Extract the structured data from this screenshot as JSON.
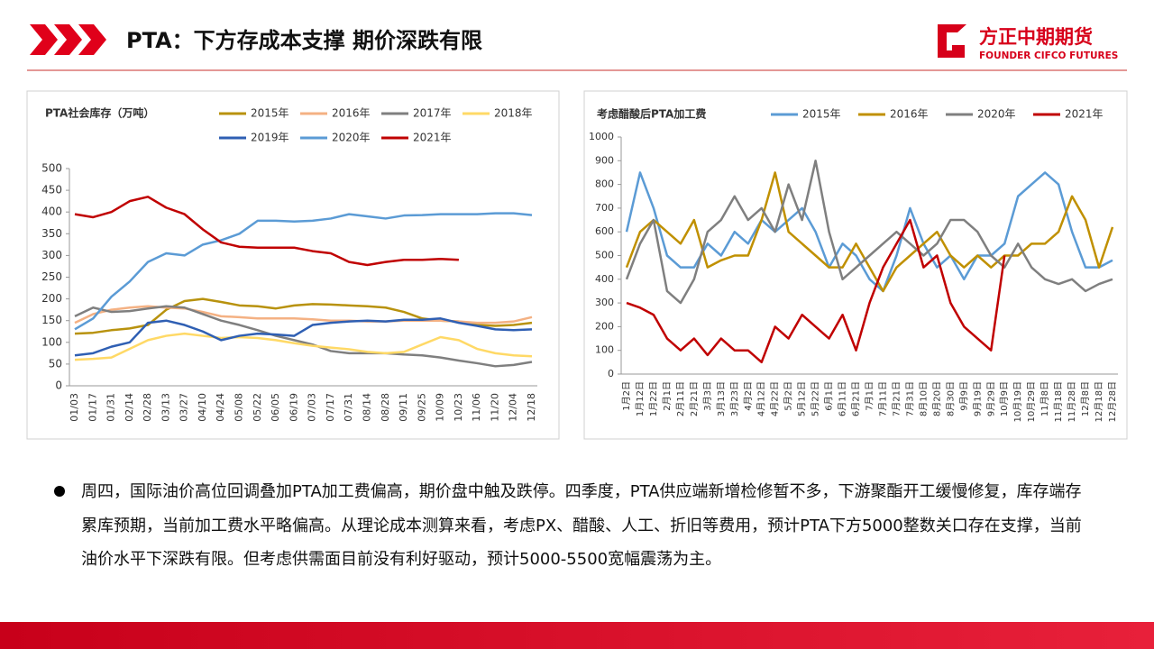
{
  "header": {
    "title": "PTA：下方存成本支撑 期价深跌有限",
    "logo_cn": "方正中期期货",
    "logo_en": "FOUNDER CIFCO FUTURES"
  },
  "chart_data": [
    {
      "type": "line",
      "title": "PTA社会库存（万吨）",
      "categories": [
        "01/03",
        "01/17",
        "01/31",
        "02/14",
        "02/28",
        "03/13",
        "03/27",
        "04/10",
        "04/24",
        "05/08",
        "05/22",
        "06/05",
        "06/19",
        "07/03",
        "07/17",
        "07/31",
        "08/14",
        "08/28",
        "09/11",
        "09/25",
        "10/09",
        "10/23",
        "11/06",
        "11/20",
        "12/04",
        "12/18"
      ],
      "series": [
        {
          "name": "2015年",
          "color": "#b8920e",
          "values": [
            120,
            122,
            128,
            132,
            140,
            175,
            195,
            200,
            193,
            185,
            183,
            178,
            185,
            188,
            187,
            185,
            183,
            180,
            170,
            155,
            150,
            148,
            140,
            138,
            140,
            145
          ]
        },
        {
          "name": "2016年",
          "color": "#f4b183",
          "values": [
            145,
            165,
            175,
            180,
            183,
            180,
            178,
            170,
            160,
            158,
            155,
            155,
            155,
            153,
            150,
            150,
            148,
            148,
            150,
            150,
            150,
            148,
            145,
            145,
            148,
            158
          ]
        },
        {
          "name": "2017年",
          "color": "#7f7f7f",
          "values": [
            160,
            180,
            170,
            172,
            178,
            183,
            180,
            165,
            150,
            140,
            128,
            115,
            105,
            95,
            80,
            75,
            75,
            75,
            72,
            70,
            65,
            58,
            52,
            45,
            48,
            55
          ]
        },
        {
          "name": "2018年",
          "color": "#ffd966",
          "values": [
            60,
            62,
            65,
            85,
            105,
            115,
            120,
            115,
            110,
            112,
            110,
            105,
            98,
            92,
            88,
            84,
            78,
            75,
            78,
            95,
            112,
            105,
            85,
            75,
            70,
            68
          ]
        },
        {
          "name": "2019年",
          "color": "#2f5fb3",
          "values": [
            70,
            75,
            90,
            100,
            145,
            150,
            140,
            125,
            105,
            115,
            120,
            118,
            115,
            140,
            145,
            148,
            150,
            148,
            152,
            152,
            155,
            145,
            138,
            130,
            128,
            130
          ]
        },
        {
          "name": "2020年",
          "color": "#5b9bd5",
          "values": [
            130,
            155,
            205,
            240,
            285,
            305,
            300,
            325,
            335,
            350,
            380,
            380,
            378,
            380,
            385,
            395,
            390,
            385,
            392,
            393,
            395,
            395,
            395,
            397,
            397,
            393
          ]
        },
        {
          "name": "2021年",
          "color": "#c00000",
          "values": [
            395,
            388,
            400,
            425,
            435,
            410,
            395,
            360,
            330,
            320,
            318,
            318,
            318,
            310,
            305,
            285,
            278,
            285,
            290,
            290,
            292,
            290,
            null,
            null,
            null,
            null
          ]
        }
      ],
      "ylim": [
        0,
        500
      ],
      "yticks": [
        0,
        50,
        100,
        150,
        200,
        250,
        300,
        350,
        400,
        450,
        500
      ]
    },
    {
      "type": "line",
      "title": "考虑醋酸后PTA加工费",
      "categories": [
        "1月2日",
        "1月12日",
        "1月22日",
        "2月1日",
        "2月11日",
        "2月21日",
        "3月3日",
        "3月13日",
        "3月23日",
        "4月2日",
        "4月12日",
        "4月22日",
        "5月2日",
        "5月12日",
        "5月22日",
        "6月1日",
        "6月11日",
        "6月21日",
        "7月1日",
        "7月11日",
        "7月21日",
        "7月31日",
        "8月10日",
        "8月20日",
        "8月30日",
        "9月9日",
        "9月19日",
        "9月29日",
        "10月9日",
        "10月19日",
        "10月29日",
        "11月8日",
        "11月18日",
        "11月28日",
        "12月8日",
        "12月18日",
        "12月28日"
      ],
      "series": [
        {
          "name": "2015年",
          "color": "#5b9bd5",
          "values": [
            600,
            850,
            700,
            500,
            450,
            450,
            550,
            500,
            600,
            550,
            650,
            600,
            650,
            700,
            600,
            450,
            550,
            500,
            400,
            350,
            500,
            700,
            550,
            450,
            500,
            400,
            500,
            500,
            550,
            750,
            800,
            850,
            800,
            600,
            450,
            450,
            480
          ]
        },
        {
          "name": "2016年",
          "color": "#c09000",
          "values": [
            450,
            600,
            650,
            600,
            550,
            650,
            450,
            480,
            500,
            500,
            650,
            850,
            600,
            550,
            500,
            450,
            450,
            550,
            450,
            350,
            450,
            500,
            550,
            600,
            500,
            450,
            500,
            450,
            500,
            500,
            550,
            550,
            600,
            750,
            650,
            450,
            620
          ]
        },
        {
          "name": "2020年",
          "color": "#7f7f7f",
          "values": [
            400,
            550,
            650,
            350,
            300,
            400,
            600,
            650,
            750,
            650,
            700,
            600,
            800,
            650,
            900,
            600,
            400,
            450,
            500,
            550,
            600,
            550,
            500,
            550,
            650,
            650,
            600,
            500,
            450,
            550,
            450,
            400,
            380,
            400,
            350,
            380,
            400
          ]
        },
        {
          "name": "2021年",
          "color": "#c00000",
          "values": [
            300,
            280,
            250,
            150,
            100,
            150,
            80,
            150,
            100,
            100,
            50,
            200,
            150,
            250,
            200,
            150,
            250,
            100,
            300,
            450,
            550,
            650,
            450,
            500,
            300,
            200,
            150,
            100,
            500,
            null,
            null,
            null,
            null,
            null,
            null,
            null,
            null
          ]
        }
      ],
      "ylim": [
        0,
        1000
      ],
      "yticks": [
        0,
        100,
        200,
        300,
        400,
        500,
        600,
        700,
        800,
        900,
        1000
      ]
    }
  ],
  "body": {
    "text": "周四，国际油价高位回调叠加PTA加工费偏高，期价盘中触及跌停。四季度，PTA供应端新增检修暂不多，下游聚酯开工缓慢修复，库存端存累库预期，当前加工费水平略偏高。从理论成本测算来看，考虑PX、醋酸、人工、折旧等费用，预计PTA下方5000整数关口存在支撑，当前油价水平下深跌有限。但考虑供需面目前没有利好驱动，预计5000-5500宽幅震荡为主。"
  }
}
